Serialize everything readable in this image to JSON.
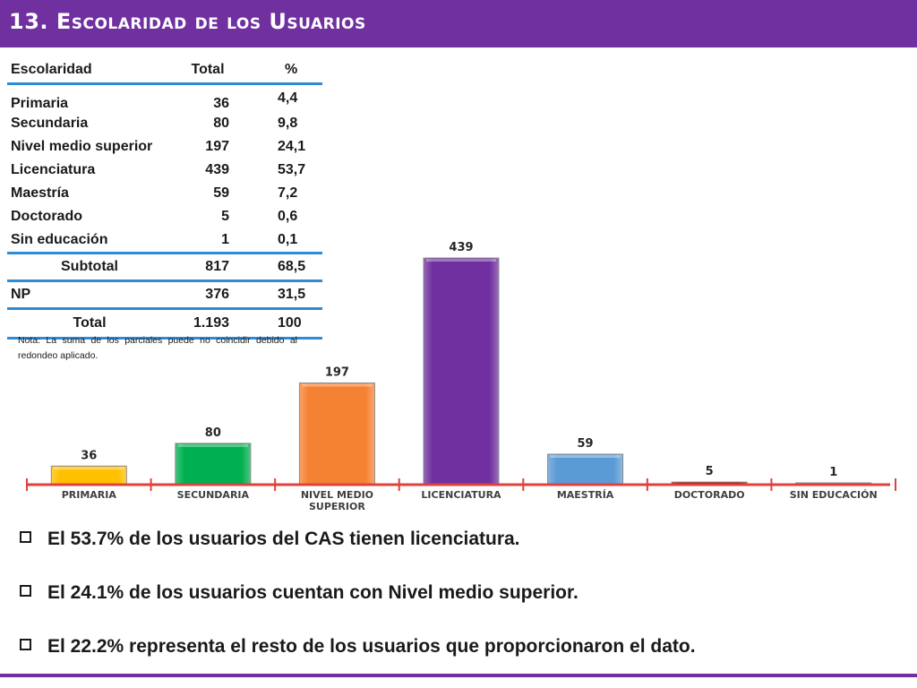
{
  "header": {
    "title": "13. Escolaridad de los Usuarios"
  },
  "table": {
    "headers": [
      "Escolaridad",
      "Total",
      "%"
    ],
    "rows": [
      [
        "Primaria",
        "36",
        "4,4"
      ],
      [
        "Secundaria",
        "80",
        "9,8"
      ],
      [
        "Nivel medio superior",
        "197",
        "24,1"
      ],
      [
        "Licenciatura",
        "439",
        "53,7"
      ],
      [
        "Maestría",
        "59",
        "7,2"
      ],
      [
        "Doctorado",
        "5",
        "0,6"
      ],
      [
        "Sin educación",
        "1",
        "0,1"
      ]
    ],
    "subtotal": [
      "Subtotal",
      "817",
      "68,5"
    ],
    "np": [
      "NP",
      "376",
      "31,5"
    ],
    "total": [
      "Total",
      "1.193",
      "100"
    ]
  },
  "note": "Nota: La suma de los parciales puede no coincidir debido al redondeo aplicado.",
  "chart_data": {
    "type": "bar",
    "categories": [
      "PRIMARIA",
      "SECUNDARIA",
      "NIVEL MEDIO SUPERIOR",
      "LICENCIATURA",
      "MAESTRÍA",
      "DOCTORADO",
      "SIN EDUCACIÓN"
    ],
    "values": [
      36,
      80,
      197,
      439,
      59,
      5,
      1
    ],
    "colors": [
      "#ffc000",
      "#00b050",
      "#f58233",
      "#7030a0",
      "#5b9bd5",
      "#c00000",
      "#c00000"
    ],
    "axis_color": "#e0413a",
    "title": "",
    "xlabel": "",
    "ylabel": "",
    "ylim": [
      0,
      439
    ],
    "grid": false,
    "legend": "none"
  },
  "bullets": [
    "El 53.7% de los usuarios del CAS tienen licenciatura.",
    "El 24.1% de los usuarios cuentan con Nivel medio superior.",
    "El  22.2% representa el resto de los usuarios que proporcionaron el dato."
  ]
}
